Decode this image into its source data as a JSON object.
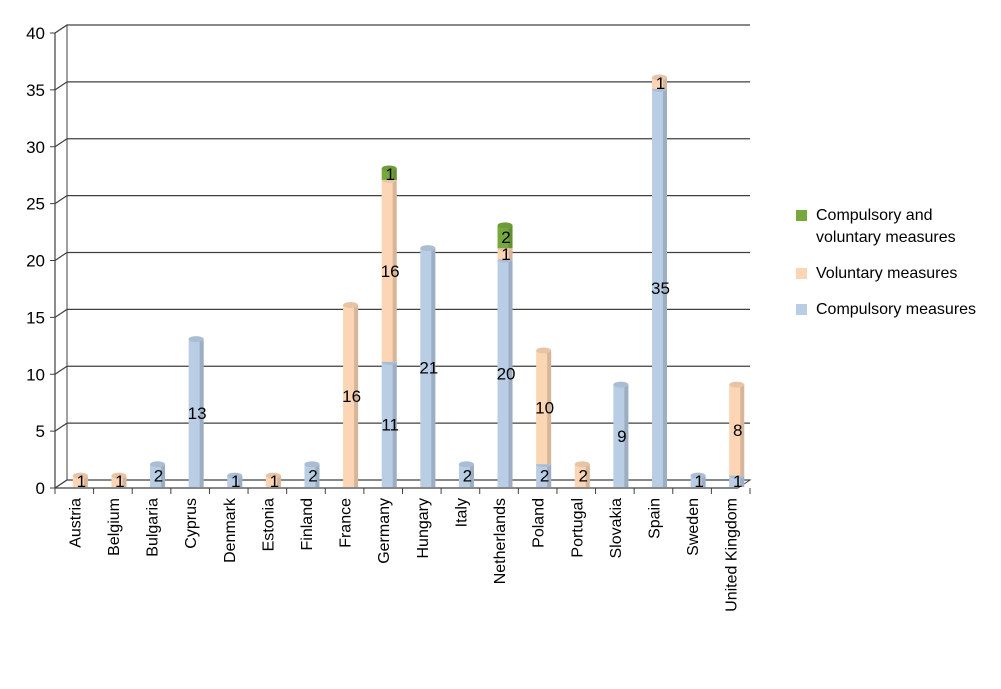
{
  "chart_data": {
    "type": "bar",
    "stacked": true,
    "ylim": [
      0,
      40
    ],
    "yticks": [
      0,
      5,
      10,
      15,
      20,
      25,
      30,
      35,
      40
    ],
    "categories": [
      "Austria",
      "Belgium",
      "Bulgaria",
      "Cyprus",
      "Denmark",
      "Estonia",
      "Finland",
      "France",
      "Germany",
      "Hungary",
      "Italy",
      "Netherlands",
      "Poland",
      "Portugal",
      "Slovakia",
      "Spain",
      "Sweden",
      "United Kingdom"
    ],
    "series": [
      {
        "name": "Compulsory measures",
        "color": "#b9cde5",
        "values": [
          0,
          0,
          2,
          13,
          1,
          0,
          2,
          0,
          11,
          21,
          2,
          20,
          2,
          0,
          9,
          35,
          1,
          1
        ]
      },
      {
        "name": "Voluntary measures",
        "color": "#fcd5b5",
        "values": [
          1,
          1,
          0,
          0,
          0,
          1,
          0,
          16,
          16,
          0,
          0,
          1,
          10,
          2,
          0,
          1,
          0,
          8
        ]
      },
      {
        "name": "Compulsory and voluntary measures",
        "color": "#77a83d",
        "values": [
          0,
          0,
          0,
          0,
          0,
          0,
          0,
          0,
          1,
          0,
          0,
          2,
          0,
          0,
          0,
          0,
          0,
          0
        ]
      }
    ],
    "legend_position": "right",
    "grid": true
  },
  "legend": {
    "items": [
      {
        "label": "Compulsory and voluntary measures",
        "color": "#77a83d"
      },
      {
        "label": "Voluntary measures",
        "color": "#fcd5b5"
      },
      {
        "label": "Compulsory measures",
        "color": "#b9cde5"
      }
    ]
  }
}
